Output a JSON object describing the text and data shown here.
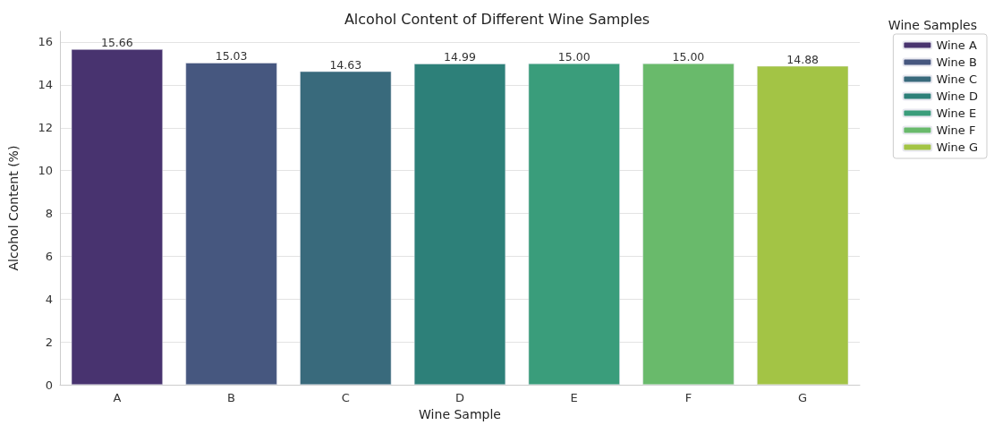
{
  "chart_data": {
    "type": "bar",
    "title": "Alcohol Content of Different Wine Samples",
    "xlabel": "Wine Sample",
    "ylabel": "Alcohol Content (%)",
    "legend_title": "Wine Samples",
    "categories": [
      "A",
      "B",
      "C",
      "D",
      "E",
      "F",
      "G"
    ],
    "series": [
      {
        "name": "Wine A",
        "color": "#48336f",
        "values": [
          15.66,
          null,
          null,
          null,
          null,
          null,
          null
        ],
        "value_labels": [
          "15.66",
          null,
          null,
          null,
          null,
          null,
          null
        ]
      },
      {
        "name": "Wine B",
        "color": "#46577f",
        "values": [
          null,
          15.03,
          null,
          null,
          null,
          null,
          null
        ],
        "value_labels": [
          null,
          "15.03",
          null,
          null,
          null,
          null,
          null
        ]
      },
      {
        "name": "Wine C",
        "color": "#396a7c",
        "values": [
          null,
          null,
          14.63,
          null,
          null,
          null,
          null
        ],
        "value_labels": [
          null,
          null,
          "14.63",
          null,
          null,
          null,
          null
        ]
      },
      {
        "name": "Wine D",
        "color": "#2d8079",
        "values": [
          null,
          null,
          null,
          14.99,
          null,
          null,
          null
        ],
        "value_labels": [
          null,
          null,
          null,
          "14.99",
          null,
          null,
          null
        ]
      },
      {
        "name": "Wine E",
        "color": "#3a9d7b",
        "values": [
          null,
          null,
          null,
          null,
          15.0,
          null,
          null
        ],
        "value_labels": [
          null,
          null,
          null,
          null,
          "15.00",
          null,
          null
        ]
      },
      {
        "name": "Wine F",
        "color": "#69ba6b",
        "values": [
          null,
          null,
          null,
          null,
          null,
          15.0,
          null
        ],
        "value_labels": [
          null,
          null,
          null,
          null,
          null,
          "15.00",
          null
        ]
      },
      {
        "name": "Wine G",
        "color": "#a3c445",
        "values": [
          null,
          null,
          null,
          null,
          null,
          null,
          14.88
        ],
        "value_labels": [
          null,
          null,
          null,
          null,
          null,
          null,
          "14.88"
        ]
      }
    ],
    "ylim": [
      0,
      16.5
    ],
    "yticks": [
      0,
      2,
      4,
      6,
      8,
      10,
      12,
      14,
      16
    ],
    "grid": "y",
    "legend": "right"
  }
}
